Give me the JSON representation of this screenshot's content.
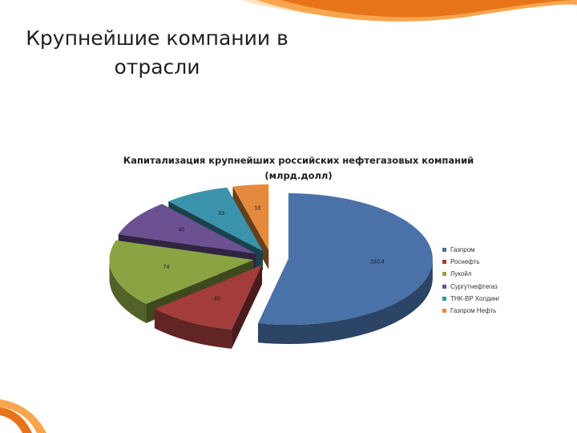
{
  "slide": {
    "title_line1": "Крупнейшие компании в",
    "title_line2": "отрасли",
    "accent_colors": [
      "#e8741a",
      "#f7a64e",
      "#fde3c3"
    ]
  },
  "chart_data": {
    "type": "pie",
    "title_line1": "Капитализация крупнейших российских нефтегазовых компаний",
    "title_line2": "(млрд.долл)",
    "legend_position": "right",
    "exploded": true,
    "three_d": true,
    "categories": [
      "Газпром",
      "Роснефть",
      "Лукойл",
      "Сургутнефтегаз",
      "ТНК-BP Холдинг",
      "Газпром Нефть"
    ],
    "values": [
      240.4,
      45,
      74,
      40,
      33,
      18
    ],
    "data_labels": [
      "240,4",
      "45",
      "74",
      "40",
      "33",
      "18"
    ],
    "colors": [
      "#4a71a8",
      "#a23d3b",
      "#8aa443",
      "#6b5192",
      "#3a93ab",
      "#e48a3e"
    ]
  }
}
